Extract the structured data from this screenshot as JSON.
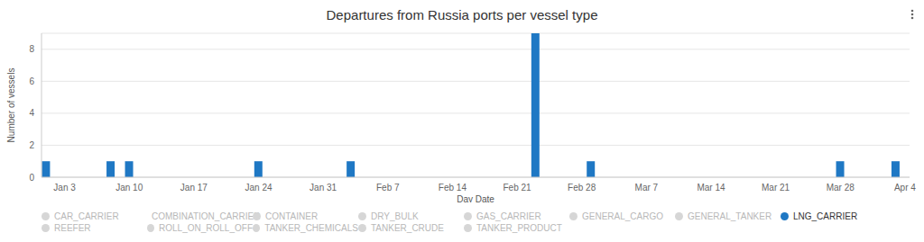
{
  "chart_data": {
    "type": "bar",
    "title": "Departures from Russia ports per vessel type",
    "x_label": "Day Date",
    "y_label": "Number of vessels",
    "categories": [
      null,
      null,
      "Jan 3",
      null,
      null,
      null,
      null,
      null,
      null,
      "Jan 10",
      null,
      null,
      null,
      null,
      null,
      null,
      "Jan 17",
      null,
      null,
      null,
      null,
      null,
      null,
      "Jan 24",
      null,
      null,
      null,
      null,
      null,
      null,
      "Jan 31",
      null,
      null,
      null,
      null,
      null,
      null,
      "Feb 7",
      null,
      null,
      null,
      null,
      null,
      null,
      "Feb 14",
      null,
      null,
      null,
      null,
      null,
      null,
      "Feb 21",
      null,
      null,
      null,
      null,
      null,
      null,
      "Feb 28",
      null,
      null,
      null,
      null,
      null,
      null,
      "Mar 7",
      null,
      null,
      null,
      null,
      null,
      null,
      "Mar 14",
      null,
      null,
      null,
      null,
      null,
      null,
      "Mar 21",
      null,
      null,
      null,
      null,
      null,
      null,
      "Mar 28",
      null,
      null,
      null,
      null,
      null,
      null,
      "Apr 4"
    ],
    "series": [
      {
        "name": "LNG_CARRIER",
        "color": "#1f78c4",
        "values": [
          1,
          0,
          0,
          0,
          0,
          0,
          0,
          1,
          0,
          1,
          0,
          0,
          0,
          0,
          0,
          0,
          0,
          0,
          0,
          0,
          0,
          0,
          0,
          1,
          0,
          0,
          0,
          0,
          0,
          0,
          0,
          0,
          0,
          1,
          0,
          0,
          0,
          0,
          0,
          0,
          0,
          0,
          0,
          0,
          0,
          0,
          0,
          0,
          0,
          0,
          0,
          0,
          0,
          9,
          0,
          0,
          0,
          0,
          0,
          1,
          0,
          0,
          0,
          0,
          0,
          0,
          0,
          0,
          0,
          0,
          0,
          0,
          0,
          0,
          0,
          0,
          0,
          0,
          0,
          0,
          0,
          0,
          0,
          0,
          0,
          0,
          1,
          0,
          0,
          0,
          0,
          0,
          1,
          0
        ]
      }
    ],
    "inactive_series": [
      {
        "name": "CAR_CARRIER",
        "color": "#d6d6d6"
      },
      {
        "name": "COMBINATION_CARRIER",
        "color": "#d6d6d6"
      },
      {
        "name": "CONTAINER",
        "color": "#d6d6d6"
      },
      {
        "name": "DRY_BULK",
        "color": "#d6d6d6"
      },
      {
        "name": "GAS_CARRIER",
        "color": "#d6d6d6"
      },
      {
        "name": "GENERAL_CARGO",
        "color": "#d6d6d6"
      },
      {
        "name": "GENERAL_TANKER",
        "color": "#d6d6d6"
      },
      {
        "name": "REEFER",
        "color": "#d6d6d6"
      },
      {
        "name": "ROLL_ON_ROLL_OFF",
        "color": "#d6d6d6"
      },
      {
        "name": "TANKER_CHEMICALS",
        "color": "#d6d6d6"
      },
      {
        "name": "TANKER_CRUDE",
        "color": "#d6d6d6"
      },
      {
        "name": "TANKER_PRODUCT",
        "color": "#d6d6d6"
      }
    ],
    "ylim": [
      0,
      9
    ],
    "yticks": [
      0,
      2,
      4,
      6,
      8
    ],
    "grid": true,
    "legend": "bottom"
  }
}
